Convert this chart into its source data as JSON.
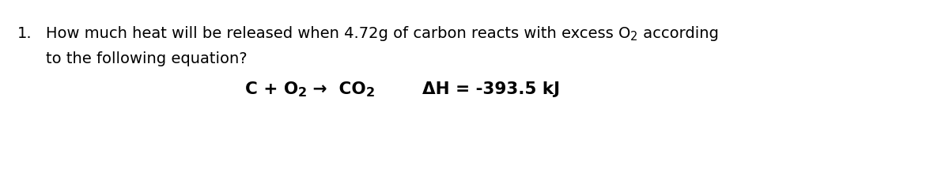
{
  "background_color": "#ffffff",
  "figsize": [
    12.0,
    2.43
  ],
  "dpi": 100,
  "text_color": "#000000",
  "font_size_body": 14.0,
  "font_size_eq": 15.5,
  "font_size_sub": 10.5,
  "line1_prefix": "1.",
  "line1_main": "How much heat will be released when 4.72g of carbon reacts with excess O",
  "line1_sub": "2",
  "line1_suffix": " according",
  "line2": "to the following equation?",
  "eq_part1": "C + O",
  "eq_sub1": "2",
  "eq_part2": " →  CO",
  "eq_sub2": "2",
  "eq_part3": "        ΔH = -393.5 kJ"
}
